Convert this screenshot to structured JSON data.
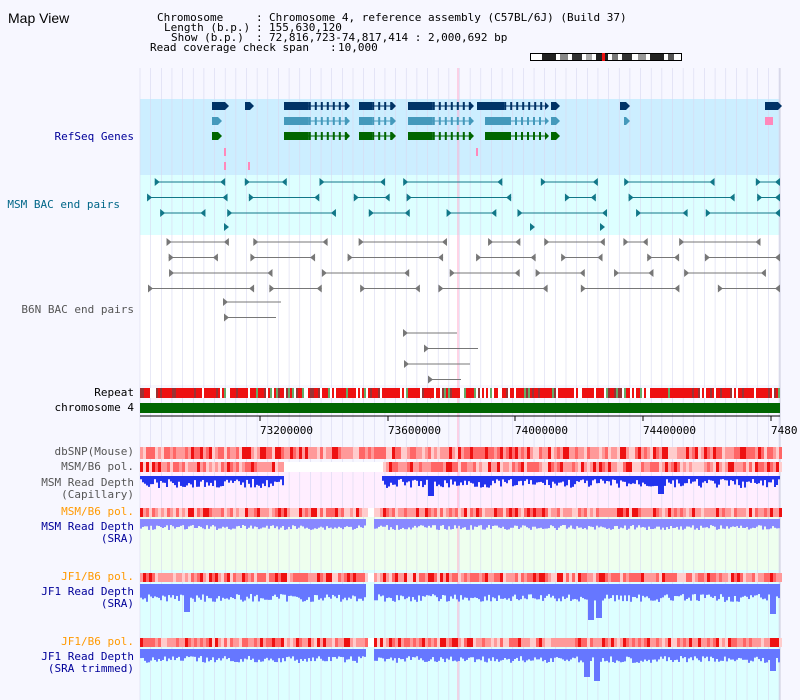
{
  "app": {
    "title": "Map View"
  },
  "header": {
    "chromosome_label": "Chromosome",
    "chromosome_value": "Chromosome 4, reference assembly (C57BL/6J) (Build 37)",
    "length_label": "Length (b.p.)",
    "length_value": "155,630,120",
    "show_label": "Show (b.p.)",
    "show_value": "72,816,723-74,817,414 : 2,000,692 bp",
    "span_label": "Read coverage check span",
    "span_value": "10,000"
  },
  "tracks": [
    {
      "name": "RefSeq Genes",
      "color": "#000099"
    },
    {
      "name": "MSM BAC end pairs",
      "color": "#006688"
    },
    {
      "name": "B6N BAC end pairs",
      "color": "#555555"
    },
    {
      "name": "Repeat",
      "color": "#000000"
    },
    {
      "name": "chromosome 4",
      "color": "#000000"
    },
    {
      "name": "dbSNP(Mouse)",
      "color": "#555555"
    },
    {
      "name": "MSM/B6 pol.",
      "color": "#555555"
    },
    {
      "name": "MSM Read Depth\n(Capillary)",
      "color": "#555555"
    },
    {
      "name": "MSM/B6 pol.",
      "color": "#ff9900"
    },
    {
      "name": "MSM Read Depth\n(SRA)",
      "color": "#000099"
    },
    {
      "name": "JF1/B6 pol.",
      "color": "#ff9900"
    },
    {
      "name": "JF1 Read Depth\n(SRA)",
      "color": "#000099"
    },
    {
      "name": "JF1/B6 pol.",
      "color": "#ff9900"
    },
    {
      "name": "JF1 Read Depth\n(SRA trimmed)",
      "color": "#000099"
    }
  ],
  "axis": {
    "ticks": [
      "73200000",
      "73600000",
      "74000000",
      "74400000",
      "7480"
    ]
  },
  "colors": {
    "gene_band": "#cceeff",
    "msm_band": "#ddffff",
    "gene_dark": "#003366",
    "gene_mid": "#4499bb",
    "gene_green": "#006600",
    "chromosome": "#006600",
    "snp": "#ff2222",
    "depth_blue": "#3333ff",
    "depth_light": "#8888ff"
  }
}
